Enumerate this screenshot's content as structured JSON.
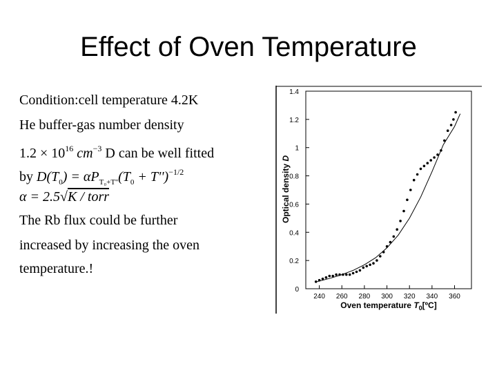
{
  "slide": {
    "title": "Effect of Oven Temperature",
    "lines": {
      "l1": "Condition:cell temperature 4.2K",
      "l2": "He buffer-gas number density",
      "l3_coef": "1.2",
      "l3_times": "× 10",
      "l3_exp": "16",
      "l3_unit": "cm",
      "l3_unit_exp": "−3",
      "l3_tail": "D can be well fitted",
      "l4_by": "by",
      "l4_formula_a": "D(T",
      "l4_formula_b": ") = αP",
      "l4_formula_sub": "T₀+T''",
      "l4_formula_c": "(T",
      "l4_formula_d": " + T'')",
      "l4_formula_exp": "−1/2",
      "l5_formula": "α = 2.5",
      "l5_unit": "K / torr",
      "l6": "The Rb flux could be further",
      "l7": "increased by increasing the oven",
      "l8": "temperature.!"
    }
  },
  "chart_data": {
    "type": "scatter",
    "xlabel_main": "Oven temperature",
    "xlabel_var": "T",
    "xlabel_sub": "0",
    "xlabel_unit": "[ºC]",
    "ylabel_main": "Optical density",
    "ylabel_var": "D",
    "xlim": [
      228,
      375
    ],
    "ylim": [
      0,
      1.4
    ],
    "xticks": [
      "240",
      "260",
      "280",
      "300",
      "320",
      "340",
      "360"
    ],
    "yticks": [
      "0",
      "0.2",
      "0.4",
      "0.6",
      "0.8",
      "1",
      "1.2",
      "1.4"
    ],
    "series": [
      {
        "style": "points",
        "x": [
          237,
          240,
          243,
          246,
          249,
          252,
          255,
          258,
          261,
          264,
          267,
          270,
          273,
          276,
          279,
          282,
          285,
          288,
          291,
          294,
          297,
          300,
          303,
          306,
          309,
          312,
          315,
          318,
          321,
          324,
          327,
          330,
          333,
          336,
          339,
          342,
          345,
          348,
          351,
          354,
          357,
          359,
          361
        ],
        "y": [
          0.05,
          0.06,
          0.07,
          0.08,
          0.09,
          0.09,
          0.1,
          0.1,
          0.1,
          0.1,
          0.1,
          0.11,
          0.12,
          0.13,
          0.15,
          0.16,
          0.17,
          0.18,
          0.2,
          0.23,
          0.26,
          0.3,
          0.33,
          0.37,
          0.42,
          0.48,
          0.55,
          0.63,
          0.7,
          0.77,
          0.81,
          0.85,
          0.87,
          0.89,
          0.91,
          0.93,
          0.95,
          0.98,
          1.05,
          1.12,
          1.16,
          1.2,
          1.25
        ]
      },
      {
        "style": "fit-line",
        "x": [
          238,
          250,
          260,
          270,
          280,
          290,
          300,
          310,
          320,
          330,
          340,
          350,
          360,
          365
        ],
        "y": [
          0.05,
          0.075,
          0.1,
          0.13,
          0.17,
          0.22,
          0.29,
          0.38,
          0.5,
          0.65,
          0.83,
          1.02,
          1.15,
          1.24
        ]
      }
    ]
  }
}
